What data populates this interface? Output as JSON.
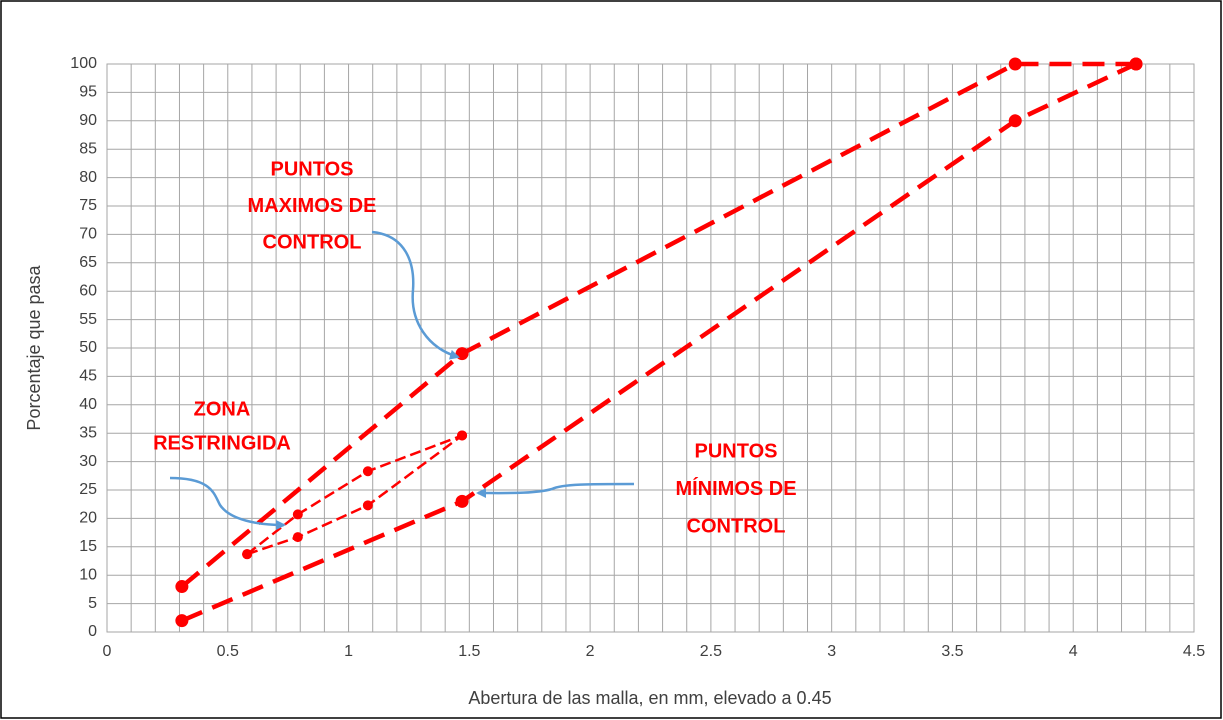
{
  "chart_data": {
    "type": "line",
    "x_label": "Abertura de las malla, en mm, elevado a 0.45",
    "y_label": "Porcentaje que pasa",
    "xlim": [
      0,
      4.5
    ],
    "xticks": [
      0,
      0.5,
      1,
      1.5,
      2,
      2.5,
      3,
      3.5,
      4,
      4.5
    ],
    "ylim": [
      0,
      100
    ],
    "yticks": [
      0,
      5,
      10,
      15,
      20,
      25,
      30,
      35,
      40,
      45,
      50,
      55,
      60,
      65,
      70,
      75,
      80,
      85,
      90,
      95,
      100
    ],
    "grid": true,
    "series": [
      {
        "color": "#ff0000",
        "line_style": "dashed",
        "width": "thick",
        "x": [
          0.31,
          1.47,
          3.76,
          4.26
        ],
        "values": [
          8,
          49,
          100,
          100
        ]
      },
      {
        "color": "#ff0000",
        "line_style": "dashed",
        "width": "thick",
        "x": [
          0.31,
          1.47,
          3.76,
          4.26
        ],
        "values": [
          2,
          23,
          90,
          100
        ]
      },
      {
        "color": "#ff0000",
        "line_style": "dashed",
        "width": "thin",
        "x": [
          0.58,
          0.79,
          1.08,
          1.47
        ],
        "values": [
          13.7,
          20.7,
          28.3,
          34.6
        ]
      },
      {
        "color": "#ff0000",
        "line_style": "dashed",
        "width": "thin",
        "x": [
          0.58,
          0.79,
          1.08,
          1.47
        ],
        "values": [
          13.7,
          16.7,
          22.3,
          34.6
        ]
      }
    ],
    "annotations": [
      {
        "lines": [
          "PUNTOS",
          "MAXIMOS DE",
          "CONTROL"
        ]
      },
      {
        "lines": [
          "ZONA",
          "RESTRINGIDA"
        ]
      },
      {
        "lines": [
          "PUNTOS",
          "MÍNIMOS DE",
          "CONTROL"
        ]
      }
    ]
  }
}
